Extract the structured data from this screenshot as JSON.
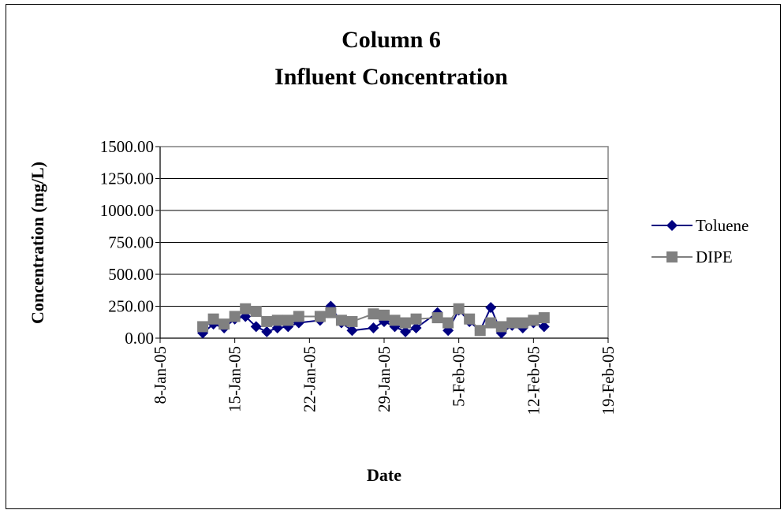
{
  "chart_data": {
    "type": "line",
    "title": "Column 6",
    "subtitle": "Influent Concentration",
    "x_label": "Date",
    "y_label": "Concentration (mg/L)",
    "x": [
      "2005-01-12",
      "2005-01-13",
      "2005-01-14",
      "2005-01-15",
      "2005-01-16",
      "2005-01-17",
      "2005-01-18",
      "2005-01-19",
      "2005-01-20",
      "2005-01-21",
      "2005-01-23",
      "2005-01-24",
      "2005-01-25",
      "2005-01-26",
      "2005-01-28",
      "2005-01-29",
      "2005-01-30",
      "2005-01-31",
      "2005-02-01",
      "2005-02-03",
      "2005-02-04",
      "2005-02-05",
      "2005-02-06",
      "2005-02-07",
      "2005-02-08",
      "2005-02-09",
      "2005-02-10",
      "2005-02-11",
      "2005-02-12",
      "2005-02-13"
    ],
    "series": [
      {
        "name": "Toluene",
        "color": "#000080",
        "marker": "diamond",
        "values": [
          40,
          110,
          80,
          150,
          170,
          90,
          50,
          80,
          90,
          120,
          140,
          250,
          120,
          60,
          80,
          130,
          90,
          50,
          80,
          200,
          60,
          220,
          130,
          60,
          240,
          40,
          100,
          80,
          120,
          90
        ]
      },
      {
        "name": "DIPE",
        "color": "#808080",
        "marker": "square",
        "values": [
          90,
          150,
          110,
          170,
          230,
          210,
          130,
          140,
          140,
          170,
          170,
          200,
          140,
          130,
          190,
          180,
          140,
          120,
          150,
          160,
          120,
          230,
          150,
          60,
          120,
          90,
          120,
          120,
          140,
          160
        ]
      }
    ],
    "xlim": [
      "2005-01-08",
      "2005-02-19"
    ],
    "xticks": [
      {
        "value": "2005-01-08",
        "label": "8-Jan-05"
      },
      {
        "value": "2005-01-15",
        "label": "15-Jan-05"
      },
      {
        "value": "2005-01-22",
        "label": "22-Jan-05"
      },
      {
        "value": "2005-01-29",
        "label": "29-Jan-05"
      },
      {
        "value": "2005-02-05",
        "label": "5-Feb-05"
      },
      {
        "value": "2005-02-12",
        "label": "12-Feb-05"
      },
      {
        "value": "2005-02-19",
        "label": "19-Feb-05"
      }
    ],
    "ylim": [
      0,
      1500
    ],
    "yticks": [
      {
        "value": 0,
        "label": "0.00"
      },
      {
        "value": 250,
        "label": "250.00"
      },
      {
        "value": 500,
        "label": "500.00"
      },
      {
        "value": 750,
        "label": "750.00"
      },
      {
        "value": 1000,
        "label": "1000.00"
      },
      {
        "value": 1250,
        "label": "1250.00"
      },
      {
        "value": 1500,
        "label": "1500.00"
      }
    ],
    "grid": true,
    "legend": "right"
  }
}
